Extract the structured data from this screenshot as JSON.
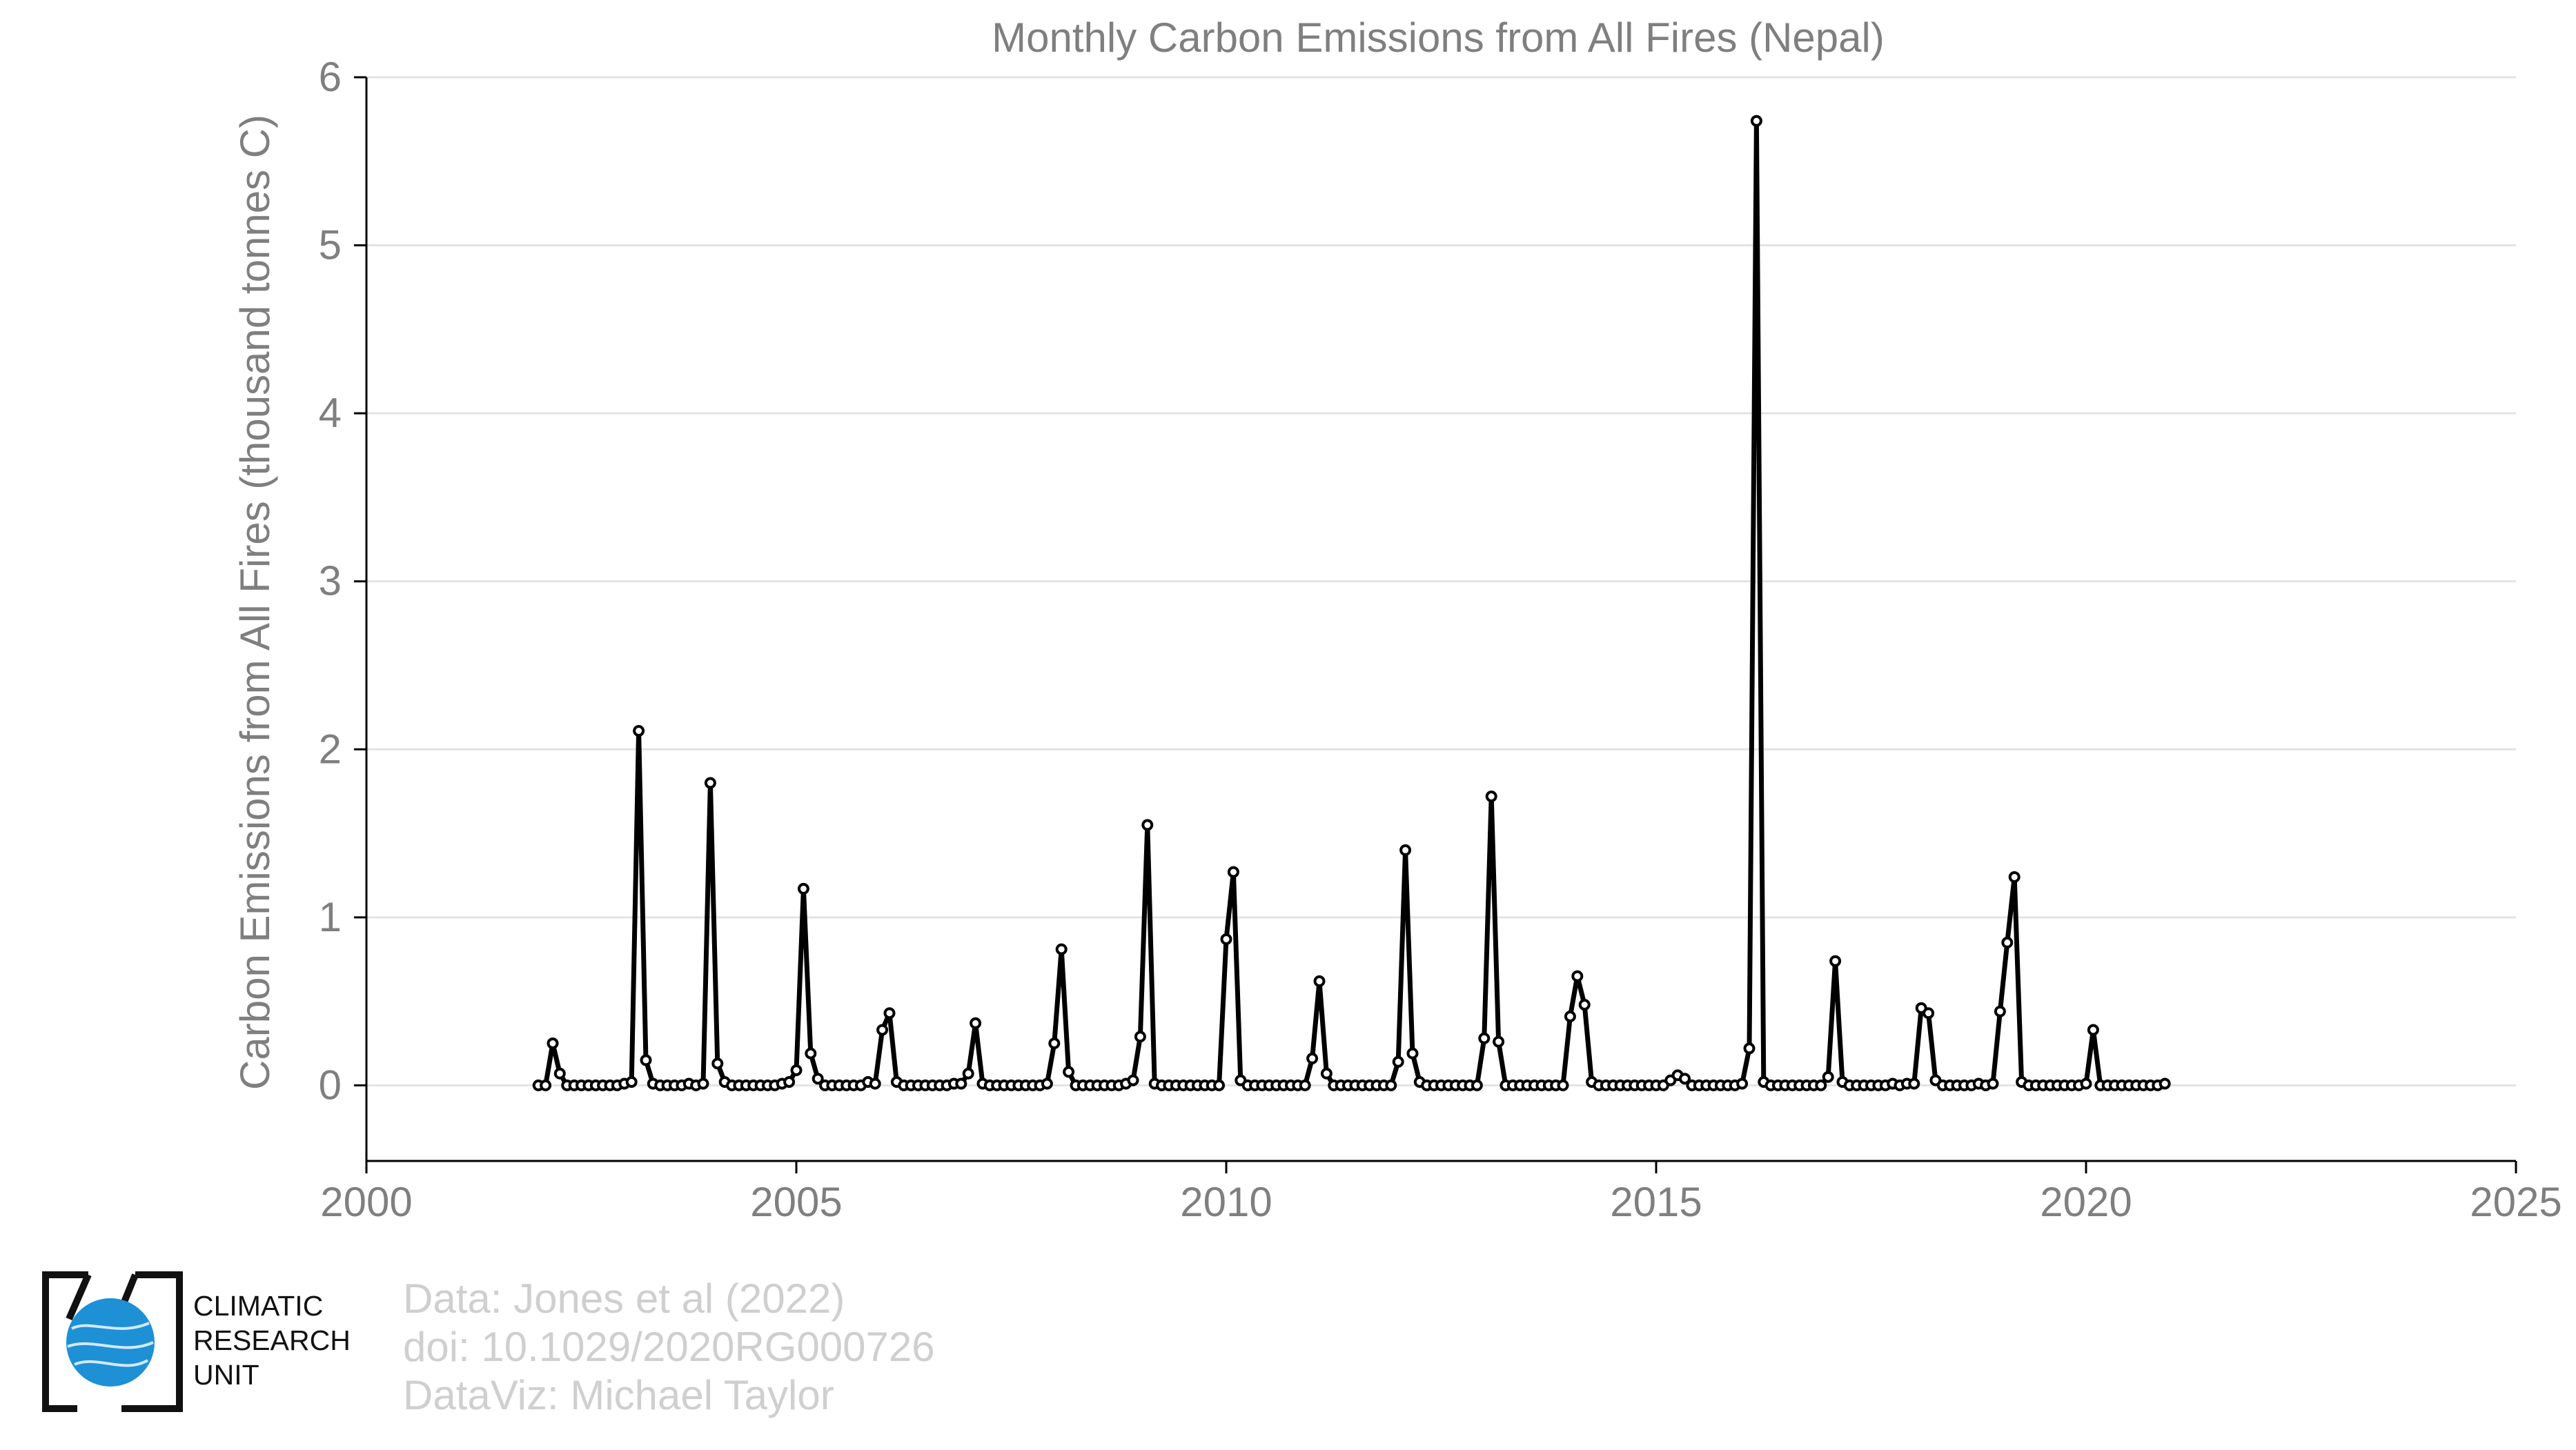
{
  "chart_data": {
    "type": "line",
    "title": "Monthly Carbon Emissions from All Fires (Nepal)",
    "xlabel": "",
    "ylabel": "Carbon Emissions from All Fires (thousand tonnes C)",
    "xlim": [
      2000,
      2025
    ],
    "ylim": [
      -0.45,
      6
    ],
    "xticks": [
      "2000",
      "2005",
      "2010",
      "2015",
      "2020",
      "2025"
    ],
    "yticks": [
      "0",
      "1",
      "2",
      "3",
      "4",
      "5",
      "6"
    ],
    "grid": "horizontal",
    "legend": "none",
    "series": [
      {
        "x_start": 2002.0,
        "x_step_months": 1,
        "line_color": "#000000",
        "marker_fill": "#ffffff",
        "values": [
          0,
          0,
          0.25,
          0.07,
          0,
          0,
          0,
          0,
          0,
          0,
          0,
          0,
          0.01,
          0.02,
          2.11,
          0.15,
          0.01,
          0,
          0,
          0,
          0,
          0.01,
          0,
          0.01,
          1.8,
          0.13,
          0.02,
          0,
          0,
          0,
          0,
          0,
          0,
          0,
          0.01,
          0.02,
          0.09,
          1.17,
          0.19,
          0.04,
          0,
          0,
          0,
          0,
          0,
          0,
          0.02,
          0.01,
          0.33,
          0.43,
          0.02,
          0,
          0,
          0,
          0,
          0,
          0,
          0,
          0.01,
          0.01,
          0.07,
          0.37,
          0.01,
          0,
          0,
          0,
          0,
          0,
          0,
          0,
          0,
          0.01,
          0.25,
          0.81,
          0.08,
          0,
          0,
          0,
          0,
          0,
          0,
          0,
          0.01,
          0.03,
          0.29,
          1.55,
          0.01,
          0,
          0,
          0,
          0,
          0,
          0,
          0,
          0,
          0,
          0.87,
          1.27,
          0.03,
          0,
          0,
          0,
          0,
          0,
          0,
          0,
          0,
          0,
          0.16,
          0.62,
          0.07,
          0,
          0,
          0,
          0,
          0,
          0,
          0,
          0,
          0,
          0.14,
          1.4,
          0.19,
          0.02,
          0,
          0,
          0,
          0,
          0,
          0,
          0,
          0,
          0.28,
          1.72,
          0.26,
          0,
          0,
          0,
          0,
          0,
          0,
          0,
          0,
          0,
          0.41,
          0.65,
          0.48,
          0.02,
          0,
          0,
          0,
          0,
          0,
          0,
          0,
          0,
          0,
          0,
          0.03,
          0.06,
          0.04,
          0,
          0,
          0,
          0,
          0,
          0,
          0,
          0.01,
          0.22,
          5.74,
          0.02,
          0,
          0,
          0,
          0,
          0,
          0,
          0,
          0,
          0.05,
          0.74,
          0.02,
          0,
          0,
          0,
          0,
          0,
          0,
          0.01,
          0,
          0.01,
          0.01,
          0.46,
          0.43,
          0.03,
          0,
          0,
          0,
          0,
          0,
          0.01,
          0,
          0.01,
          0.44,
          0.85,
          1.24,
          0.02,
          0,
          0,
          0,
          0,
          0,
          0,
          0,
          0,
          0.01,
          0.33,
          0,
          0,
          0,
          0,
          0,
          0,
          0,
          0,
          0,
          0.01
        ]
      }
    ]
  },
  "branding": {
    "logo_lines": [
      "CLIMATIC",
      "RESEARCH",
      "UNIT"
    ],
    "logo_color": "#1e90d6"
  },
  "credits": {
    "line1": "Data: Jones et al (2022)",
    "line2": "doi: 10.1029/2020RG000726",
    "line3": "DataViz: Michael Taylor"
  }
}
